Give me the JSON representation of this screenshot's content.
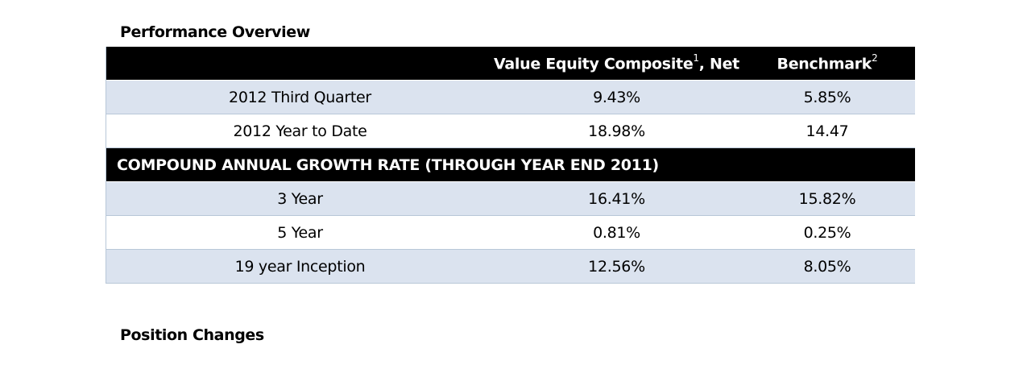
{
  "titles": {
    "performance": "Performance Overview",
    "positions": "Position Changes"
  },
  "header": {
    "col1": "",
    "col2": "Value Equity Composite",
    "col2_sup": "1",
    "col2_suffix": ", Net",
    "col3": "Benchmark",
    "col3_sup": "2"
  },
  "period_rows": [
    {
      "label": "2012 Third Quarter",
      "composite": "9.43%",
      "benchmark": "5.85%"
    },
    {
      "label": "2012 Year to Date",
      "composite": "18.98%",
      "benchmark": "14.47"
    }
  ],
  "cagr_heading": "COMPOUND ANNUAL GROWTH RATE (THROUGH YEAR END 2011)",
  "cagr_rows": [
    {
      "label": "3 Year",
      "composite": "16.41%",
      "benchmark": "15.82%"
    },
    {
      "label": "5 Year",
      "composite": "0.81%",
      "benchmark": "0.25%"
    },
    {
      "label": "19 year Inception",
      "composite": "12.56%",
      "benchmark": "8.05%"
    }
  ],
  "colors": {
    "header_bg": "#000000",
    "shaded_row": "#dbe3ef",
    "row_border": "#b8c7d8"
  }
}
